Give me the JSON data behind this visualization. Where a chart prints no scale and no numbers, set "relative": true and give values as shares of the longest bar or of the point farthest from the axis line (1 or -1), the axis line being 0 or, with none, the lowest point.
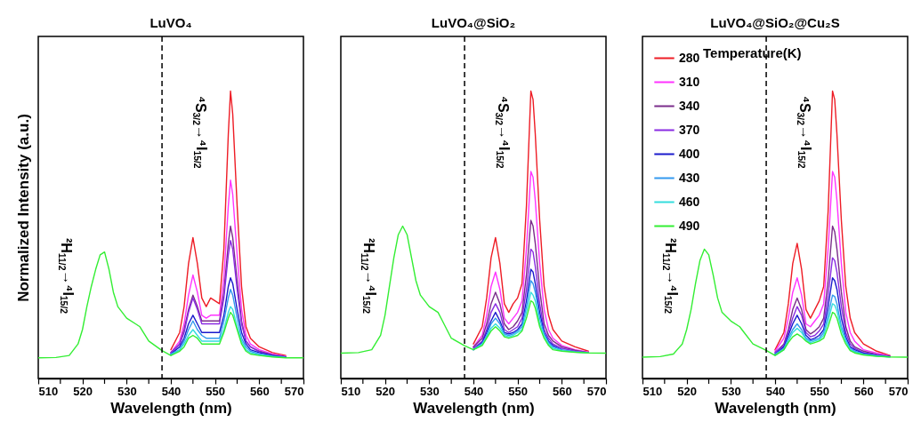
{
  "chart_data": [
    {
      "type": "line",
      "title": "LuVO₄",
      "xlabel": "Wavelength (nm)",
      "ylabel": "Normalized Intensity (a.u.)",
      "relative": true,
      "xlim": [
        510,
        570
      ],
      "xticks": [
        510,
        {
          "value": 515,
          "label": null
        },
        520,
        {
          "value": 525,
          "label": null
        },
        530,
        {
          "value": 535,
          "label": null
        },
        540,
        {
          "value": 545,
          "label": null
        },
        550,
        {
          "value": 555,
          "label": null
        },
        560,
        {
          "value": 565,
          "label": null
        },
        570
      ],
      "ref_lines": [
        {
          "axis": "x",
          "value": 538,
          "line_style": "dashed",
          "color": "#000000"
        }
      ],
      "annotations": [
        "²H$_{11/2}$→⁴I$_{15/2}$",
        "⁴S$_{3/2}$→⁴I$_{15/2}$"
      ],
      "x": [
        510,
        514,
        517,
        519,
        520,
        521,
        522,
        523,
        524,
        525,
        526,
        527,
        528,
        530,
        532,
        533,
        535,
        538,
        540,
        542,
        543,
        544,
        545,
        546,
        547,
        548,
        549,
        550,
        551,
        552,
        553,
        553.5,
        554,
        555,
        556,
        557,
        558,
        560,
        563,
        566,
        570
      ],
      "series": [
        {
          "color": "#ee1c25",
          "values": [
            null,
            null,
            null,
            null,
            null,
            null,
            null,
            null,
            null,
            null,
            null,
            null,
            null,
            null,
            null,
            null,
            null,
            null,
            0.1,
            0.16,
            0.25,
            0.4,
            0.49,
            0.4,
            0.28,
            0.25,
            0.28,
            0.27,
            0.26,
            0.45,
            0.85,
            1.0,
            0.92,
            0.6,
            0.32,
            0.18,
            0.14,
            0.11,
            0.09,
            0.08,
            null
          ]
        },
        {
          "color": "#ff33ff",
          "values": [
            null,
            null,
            null,
            null,
            null,
            null,
            null,
            null,
            null,
            null,
            null,
            null,
            null,
            null,
            null,
            null,
            null,
            null,
            0.09,
            0.13,
            0.19,
            0.29,
            0.36,
            0.3,
            0.22,
            0.21,
            0.22,
            0.22,
            0.22,
            0.35,
            0.6,
            0.69,
            0.64,
            0.43,
            0.24,
            0.15,
            0.12,
            0.1,
            0.085,
            0.077,
            null
          ]
        },
        {
          "color": "#7b2d8b",
          "values": [
            null,
            null,
            null,
            null,
            null,
            null,
            null,
            null,
            null,
            null,
            null,
            null,
            null,
            null,
            null,
            null,
            null,
            null,
            0.09,
            0.12,
            0.17,
            0.24,
            0.29,
            0.25,
            0.2,
            0.2,
            0.2,
            0.2,
            0.2,
            0.3,
            0.47,
            0.53,
            0.49,
            0.34,
            0.2,
            0.13,
            0.11,
            0.095,
            0.082,
            0.075,
            null
          ]
        },
        {
          "color": "#8a2be2",
          "values": [
            null,
            null,
            null,
            null,
            null,
            null,
            null,
            null,
            null,
            null,
            null,
            null,
            null,
            null,
            null,
            null,
            null,
            null,
            0.09,
            0.12,
            0.16,
            0.23,
            0.28,
            0.24,
            0.19,
            0.19,
            0.19,
            0.19,
            0.19,
            0.28,
            0.43,
            0.48,
            0.45,
            0.31,
            0.19,
            0.13,
            0.11,
            0.093,
            0.08,
            0.075,
            null
          ]
        },
        {
          "color": "#1a1acc",
          "values": [
            null,
            null,
            null,
            null,
            null,
            null,
            null,
            null,
            null,
            null,
            null,
            null,
            null,
            null,
            null,
            null,
            null,
            null,
            0.085,
            0.11,
            0.14,
            0.19,
            0.22,
            0.19,
            0.16,
            0.16,
            0.16,
            0.16,
            0.16,
            0.22,
            0.32,
            0.35,
            0.33,
            0.24,
            0.16,
            0.12,
            0.1,
            0.09,
            0.08,
            0.074,
            null
          ]
        },
        {
          "color": "#3399ee",
          "values": [
            null,
            null,
            null,
            null,
            null,
            null,
            null,
            null,
            null,
            null,
            null,
            null,
            null,
            null,
            null,
            null,
            null,
            null,
            0.085,
            0.1,
            0.13,
            0.17,
            0.2,
            0.17,
            0.15,
            0.14,
            0.14,
            0.14,
            0.14,
            0.2,
            0.28,
            0.31,
            0.29,
            0.21,
            0.14,
            0.11,
            0.095,
            0.085,
            0.078,
            0.073,
            null
          ]
        },
        {
          "color": "#33dddd",
          "values": [
            null,
            null,
            null,
            null,
            null,
            null,
            null,
            null,
            null,
            null,
            null,
            null,
            null,
            null,
            null,
            null,
            null,
            null,
            0.08,
            0.1,
            0.12,
            0.15,
            0.17,
            0.15,
            0.13,
            0.13,
            0.13,
            0.13,
            0.13,
            0.17,
            0.23,
            0.25,
            0.24,
            0.18,
            0.13,
            0.1,
            0.09,
            0.082,
            0.076,
            0.073,
            null
          ]
        },
        {
          "color": "#33ee33",
          "values": [
            0.072,
            0.073,
            0.08,
            0.12,
            0.17,
            0.25,
            0.32,
            0.38,
            0.43,
            0.44,
            0.38,
            0.3,
            0.25,
            0.21,
            0.19,
            0.18,
            0.13,
            0.097,
            0.08,
            0.095,
            0.11,
            0.14,
            0.15,
            0.14,
            0.12,
            0.12,
            0.12,
            0.12,
            0.12,
            0.16,
            0.21,
            0.23,
            0.22,
            0.17,
            0.12,
            0.095,
            0.085,
            0.08,
            0.075,
            0.072,
            0.072
          ]
        }
      ]
    },
    {
      "type": "line",
      "title": "LuVO₄@SiO₂",
      "xlabel": "Wavelength (nm)",
      "relative": true,
      "xlim": [
        510,
        570
      ],
      "xticks": [
        510,
        {
          "value": 515,
          "label": null
        },
        520,
        {
          "value": 525,
          "label": null
        },
        530,
        {
          "value": 535,
          "label": null
        },
        540,
        {
          "value": 545,
          "label": null
        },
        550,
        {
          "value": 555,
          "label": null
        },
        560,
        {
          "value": 565,
          "label": null
        },
        570
      ],
      "ref_lines": [
        {
          "axis": "x",
          "value": 538,
          "line_style": "dashed",
          "color": "#000000"
        }
      ],
      "annotations": [
        "²H$_{11/2}$→⁴I$_{15/2}$",
        "⁴S$_{3/2}$→⁴I$_{15/2}$"
      ],
      "x": [
        510,
        514,
        517,
        519,
        520,
        521,
        522,
        523,
        524,
        525,
        526,
        527,
        528,
        530,
        532,
        533,
        535,
        538,
        540,
        542,
        543,
        544,
        545,
        546,
        547,
        548,
        549,
        550,
        551,
        552,
        553,
        553.5,
        554,
        555,
        556,
        557,
        558,
        560,
        563,
        566,
        570
      ],
      "series": [
        {
          "color": "#ee1c25",
          "values": [
            null,
            null,
            null,
            null,
            null,
            null,
            null,
            null,
            null,
            null,
            null,
            null,
            null,
            null,
            null,
            null,
            null,
            null,
            0.12,
            0.18,
            0.28,
            0.42,
            0.49,
            0.4,
            0.26,
            0.23,
            0.26,
            0.28,
            0.33,
            0.6,
            1.0,
            0.97,
            0.85,
            0.55,
            0.32,
            0.22,
            0.17,
            0.13,
            0.11,
            0.095,
            null
          ]
        },
        {
          "color": "#ff33ff",
          "values": [
            null,
            null,
            null,
            null,
            null,
            null,
            null,
            null,
            null,
            null,
            null,
            null,
            null,
            null,
            null,
            null,
            null,
            null,
            0.11,
            0.15,
            0.22,
            0.32,
            0.37,
            0.31,
            0.21,
            0.19,
            0.21,
            0.23,
            0.27,
            0.45,
            0.72,
            0.7,
            0.62,
            0.4,
            0.24,
            0.17,
            0.14,
            0.115,
            0.1,
            0.092,
            null
          ]
        },
        {
          "color": "#7b2d8b",
          "values": [
            null,
            null,
            null,
            null,
            null,
            null,
            null,
            null,
            null,
            null,
            null,
            null,
            null,
            null,
            null,
            null,
            null,
            null,
            0.11,
            0.14,
            0.19,
            0.26,
            0.3,
            0.26,
            0.19,
            0.17,
            0.18,
            0.2,
            0.23,
            0.36,
            0.55,
            0.53,
            0.47,
            0.31,
            0.19,
            0.15,
            0.13,
            0.11,
            0.098,
            0.09,
            null
          ]
        },
        {
          "color": "#8a2be2",
          "values": [
            null,
            null,
            null,
            null,
            null,
            null,
            null,
            null,
            null,
            null,
            null,
            null,
            null,
            null,
            null,
            null,
            null,
            null,
            0.105,
            0.13,
            0.17,
            0.23,
            0.26,
            0.23,
            0.17,
            0.16,
            0.17,
            0.18,
            0.21,
            0.31,
            0.45,
            0.44,
            0.39,
            0.26,
            0.17,
            0.14,
            0.12,
            0.105,
            0.095,
            0.09,
            null
          ]
        },
        {
          "color": "#1a1acc",
          "values": [
            null,
            null,
            null,
            null,
            null,
            null,
            null,
            null,
            null,
            null,
            null,
            null,
            null,
            null,
            null,
            null,
            null,
            null,
            0.1,
            0.125,
            0.16,
            0.2,
            0.23,
            0.2,
            0.16,
            0.155,
            0.16,
            0.17,
            0.19,
            0.27,
            0.38,
            0.37,
            0.33,
            0.23,
            0.16,
            0.13,
            0.115,
            0.1,
            null,
            null,
            null
          ]
        },
        {
          "color": "#3399ee",
          "values": [
            null,
            null,
            null,
            null,
            null,
            null,
            null,
            null,
            null,
            null,
            null,
            null,
            null,
            null,
            null,
            null,
            null,
            null,
            0.1,
            0.12,
            0.15,
            0.19,
            0.21,
            0.19,
            0.155,
            0.15,
            0.155,
            0.165,
            0.18,
            0.25,
            0.34,
            0.33,
            0.3,
            0.21,
            0.155,
            0.125,
            0.11,
            0.1,
            0.093,
            0.09,
            null
          ]
        },
        {
          "color": "#33dddd",
          "values": [
            null,
            null,
            null,
            null,
            null,
            null,
            null,
            null,
            null,
            null,
            null,
            null,
            null,
            null,
            null,
            null,
            null,
            null,
            0.1,
            0.12,
            0.145,
            0.175,
            0.19,
            0.175,
            0.15,
            0.145,
            0.15,
            0.16,
            0.17,
            0.23,
            0.3,
            0.29,
            0.27,
            0.19,
            0.15,
            0.12,
            0.105,
            0.097,
            0.092,
            0.089,
            null
          ]
        },
        {
          "color": "#33ee33",
          "values": [
            0.088,
            0.09,
            0.1,
            0.15,
            0.22,
            0.32,
            0.42,
            0.5,
            0.53,
            0.5,
            0.42,
            0.34,
            0.29,
            0.25,
            0.23,
            0.2,
            0.14,
            0.114,
            0.1,
            0.115,
            0.14,
            0.165,
            0.18,
            0.165,
            0.145,
            0.14,
            0.145,
            0.15,
            0.165,
            0.21,
            0.27,
            0.265,
            0.245,
            0.18,
            0.14,
            0.115,
            0.1,
            0.095,
            0.091,
            0.089,
            0.088
          ]
        }
      ]
    },
    {
      "type": "line",
      "title": "LuVO₄@SiO₂@Cu₂S",
      "xlabel": "Wavelength (nm)",
      "relative": true,
      "legend": "top left",
      "legend_title": "Temperature(K)",
      "xlim": [
        510,
        570
      ],
      "xticks": [
        510,
        {
          "value": 515,
          "label": null
        },
        520,
        {
          "value": 525,
          "label": null
        },
        530,
        {
          "value": 535,
          "label": null
        },
        540,
        {
          "value": 545,
          "label": null
        },
        550,
        {
          "value": 555,
          "label": null
        },
        560,
        {
          "value": 565,
          "label": null
        },
        570
      ],
      "ref_lines": [
        {
          "axis": "x",
          "value": 538,
          "line_style": "dashed",
          "color": "#000000"
        }
      ],
      "annotations": [
        "²H$_{11/2}$→⁴I$_{15/2}$",
        "⁴S$_{3/2}$→⁴I$_{15/2}$"
      ],
      "x": [
        510,
        514,
        517,
        519,
        520,
        521,
        522,
        523,
        524,
        525,
        526,
        527,
        528,
        530,
        532,
        533,
        535,
        538,
        540,
        542,
        543,
        544,
        545,
        546,
        547,
        548,
        549,
        550,
        551,
        552,
        553,
        553.5,
        554,
        555,
        556,
        557,
        558,
        560,
        563,
        566,
        570
      ],
      "series": [
        {
          "name": "280",
          "color": "#ee1c25",
          "values": [
            null,
            null,
            null,
            null,
            null,
            null,
            null,
            null,
            null,
            null,
            null,
            null,
            null,
            null,
            null,
            null,
            null,
            null,
            0.1,
            0.16,
            0.26,
            0.4,
            0.47,
            0.38,
            0.24,
            0.21,
            0.24,
            0.27,
            0.32,
            0.58,
            1.0,
            0.97,
            0.85,
            0.55,
            0.32,
            0.21,
            0.16,
            0.12,
            0.095,
            0.08,
            null
          ]
        },
        {
          "name": "310",
          "color": "#ff33ff",
          "values": [
            null,
            null,
            null,
            null,
            null,
            null,
            null,
            null,
            null,
            null,
            null,
            null,
            null,
            null,
            null,
            null,
            null,
            null,
            0.095,
            0.14,
            0.21,
            0.3,
            0.35,
            0.29,
            0.19,
            0.18,
            0.2,
            0.22,
            0.26,
            0.45,
            0.72,
            0.7,
            0.62,
            0.4,
            0.23,
            0.16,
            0.13,
            0.1,
            0.088,
            0.078,
            null
          ]
        },
        {
          "name": "340",
          "color": "#7b2d8b",
          "values": [
            null,
            null,
            null,
            null,
            null,
            null,
            null,
            null,
            null,
            null,
            null,
            null,
            null,
            null,
            null,
            null,
            null,
            null,
            0.09,
            0.12,
            0.17,
            0.24,
            0.28,
            0.24,
            0.17,
            0.155,
            0.165,
            0.18,
            0.21,
            0.34,
            0.53,
            0.51,
            0.45,
            0.3,
            0.18,
            0.13,
            0.11,
            0.095,
            0.084,
            0.077,
            null
          ]
        },
        {
          "name": "370",
          "color": "#8a2be2",
          "values": [
            null,
            null,
            null,
            null,
            null,
            null,
            null,
            null,
            null,
            null,
            null,
            null,
            null,
            null,
            null,
            null,
            null,
            null,
            0.09,
            0.115,
            0.16,
            0.21,
            0.25,
            0.22,
            0.16,
            0.145,
            0.15,
            0.165,
            0.19,
            0.29,
            0.42,
            0.41,
            0.37,
            0.25,
            0.16,
            0.12,
            0.105,
            0.09,
            0.082,
            0.076,
            null
          ]
        },
        {
          "name": "400",
          "color": "#1a1acc",
          "values": [
            null,
            null,
            null,
            null,
            null,
            null,
            null,
            null,
            null,
            null,
            null,
            null,
            null,
            null,
            null,
            null,
            null,
            null,
            0.085,
            0.11,
            0.15,
            0.19,
            0.22,
            0.19,
            0.15,
            0.135,
            0.14,
            0.15,
            0.17,
            0.25,
            0.35,
            0.34,
            0.31,
            0.21,
            0.145,
            0.11,
            0.1,
            0.088,
            0.08,
            0.076,
            null
          ]
        },
        {
          "name": "430",
          "color": "#3399ee",
          "values": [
            null,
            null,
            null,
            null,
            null,
            null,
            null,
            null,
            null,
            null,
            null,
            null,
            null,
            null,
            null,
            null,
            null,
            null,
            0.085,
            0.105,
            0.14,
            0.17,
            0.19,
            0.17,
            0.14,
            0.13,
            0.135,
            0.14,
            0.16,
            0.22,
            0.29,
            0.285,
            0.26,
            0.18,
            0.135,
            0.105,
            0.095,
            0.085,
            0.079,
            0.075,
            null
          ]
        },
        {
          "name": "460",
          "color": "#33dddd",
          "values": [
            null,
            null,
            null,
            null,
            null,
            null,
            null,
            null,
            null,
            null,
            null,
            null,
            null,
            null,
            null,
            null,
            null,
            null,
            0.08,
            0.1,
            0.13,
            0.16,
            0.175,
            0.16,
            0.135,
            0.125,
            0.13,
            0.135,
            0.15,
            0.2,
            0.26,
            0.255,
            0.235,
            0.17,
            0.13,
            0.1,
            0.092,
            0.083,
            0.078,
            0.075,
            null
          ]
        },
        {
          "name": "490",
          "color": "#33ee33",
          "values": [
            0.074,
            0.076,
            0.085,
            0.12,
            0.17,
            0.24,
            0.33,
            0.41,
            0.45,
            0.43,
            0.36,
            0.28,
            0.23,
            0.2,
            0.18,
            0.16,
            0.12,
            0.098,
            0.08,
            0.1,
            0.125,
            0.145,
            0.155,
            0.145,
            0.13,
            0.12,
            0.125,
            0.13,
            0.14,
            0.18,
            0.23,
            0.225,
            0.21,
            0.155,
            0.12,
            0.097,
            0.089,
            0.082,
            0.077,
            0.075,
            0.074
          ]
        }
      ]
    }
  ]
}
